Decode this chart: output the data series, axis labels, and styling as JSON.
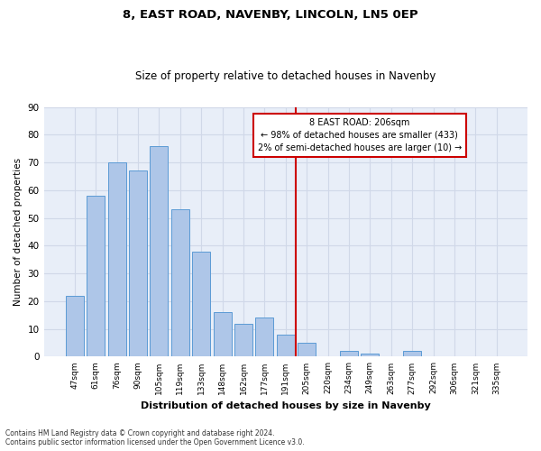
{
  "title1": "8, EAST ROAD, NAVENBY, LINCOLN, LN5 0EP",
  "title2": "Size of property relative to detached houses in Navenby",
  "xlabel": "Distribution of detached houses by size in Navenby",
  "ylabel": "Number of detached properties",
  "categories": [
    "47sqm",
    "61sqm",
    "76sqm",
    "90sqm",
    "105sqm",
    "119sqm",
    "133sqm",
    "148sqm",
    "162sqm",
    "177sqm",
    "191sqm",
    "205sqm",
    "220sqm",
    "234sqm",
    "249sqm",
    "263sqm",
    "277sqm",
    "292sqm",
    "306sqm",
    "321sqm",
    "335sqm"
  ],
  "values": [
    22,
    58,
    70,
    67,
    76,
    53,
    38,
    16,
    12,
    14,
    8,
    5,
    0,
    2,
    1,
    0,
    2,
    0,
    0,
    0,
    0
  ],
  "bar_color": "#aec6e8",
  "bar_edge_color": "#5b9bd5",
  "vline_color": "#cc0000",
  "annotation_text": "8 EAST ROAD: 206sqm\n← 98% of detached houses are smaller (433)\n2% of semi-detached houses are larger (10) →",
  "annotation_box_color": "#cc0000",
  "ylim": [
    0,
    90
  ],
  "yticks": [
    0,
    10,
    20,
    30,
    40,
    50,
    60,
    70,
    80,
    90
  ],
  "footnote1": "Contains HM Land Registry data © Crown copyright and database right 2024.",
  "footnote2": "Contains public sector information licensed under the Open Government Licence v3.0.",
  "grid_color": "#d0d8e8",
  "background_color": "#e8eef8",
  "title_fontsize": 9.5,
  "subtitle_fontsize": 8.5,
  "vline_index": 10.5
}
